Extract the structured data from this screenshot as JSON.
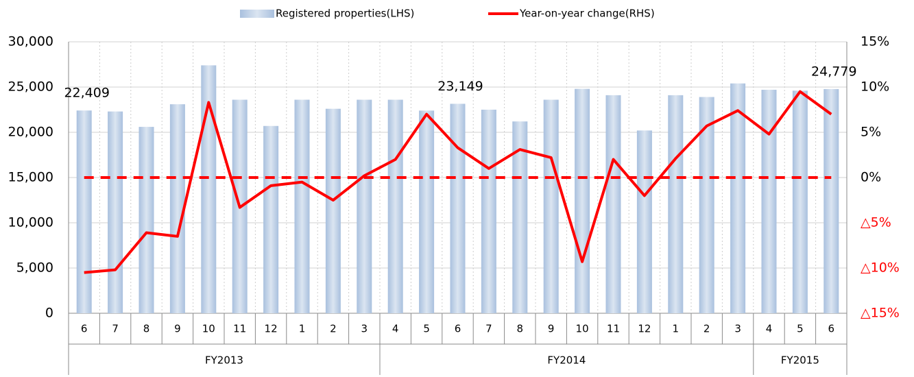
{
  "chart_data": {
    "type": "bar_line",
    "legend_position": "top",
    "categories": [
      "6",
      "7",
      "8",
      "9",
      "10",
      "11",
      "12",
      "1",
      "2",
      "3",
      "4",
      "5",
      "6",
      "7",
      "8",
      "9",
      "10",
      "11",
      "12",
      "1",
      "2",
      "3",
      "4",
      "5",
      "6"
    ],
    "groups": [
      {
        "label": "FY2013",
        "span": 10
      },
      {
        "label": "FY2014",
        "span": 12
      },
      {
        "label": "FY2015",
        "span": 3
      }
    ],
    "series": [
      {
        "name": "Registered properties(LHS)",
        "color": "#b8cce4",
        "type": "bar",
        "axis": "y",
        "values": [
          22409,
          22300,
          20600,
          23100,
          27400,
          23600,
          20700,
          23600,
          22600,
          23600,
          23600,
          22400,
          23149,
          22500,
          21200,
          23600,
          24800,
          24100,
          20200,
          24100,
          23900,
          25400,
          24700,
          24600,
          24779
        ],
        "value_labels": [
          "22,409",
          null,
          null,
          null,
          null,
          null,
          null,
          null,
          null,
          null,
          null,
          null,
          "23,149",
          null,
          null,
          null,
          null,
          null,
          null,
          null,
          null,
          null,
          null,
          null,
          "24,779"
        ]
      },
      {
        "name": "Year-on-year change(RHS)",
        "color": "#ff0000",
        "type": "line",
        "axis": "y2",
        "values": [
          -10.5,
          -10.2,
          -6.1,
          -6.5,
          8.3,
          -3.3,
          -0.9,
          -0.5,
          -2.5,
          0.2,
          2.0,
          7.0,
          3.3,
          1.0,
          3.1,
          2.2,
          -9.3,
          2.0,
          -2.0,
          2.1,
          5.7,
          7.4,
          4.8,
          9.5,
          7.0
        ]
      }
    ],
    "ylim": [
      0,
      30000
    ],
    "yticks": [
      0,
      {
        "value": 5000,
        "label": "5,000"
      },
      {
        "value": 10000,
        "label": "10,000"
      },
      {
        "value": 15000,
        "label": "15,000"
      },
      {
        "value": 20000,
        "label": "20,000"
      },
      {
        "value": 25000,
        "label": "25,000"
      },
      {
        "value": 30000,
        "label": "30,000"
      }
    ],
    "y2lim": [
      -15,
      15
    ],
    "y2ticks": [
      {
        "value": -15,
        "label": "△15%"
      },
      {
        "value": -10,
        "label": "△10%"
      },
      {
        "value": -5,
        "label": "△5%"
      },
      {
        "value": 0,
        "label": "0%"
      },
      {
        "value": 5,
        "label": "5%"
      },
      {
        "value": 10,
        "label": "10%"
      },
      {
        "value": 15,
        "label": "15%"
      }
    ],
    "negative_label_color": "#ff0000",
    "zero_line": true,
    "grid": true
  }
}
